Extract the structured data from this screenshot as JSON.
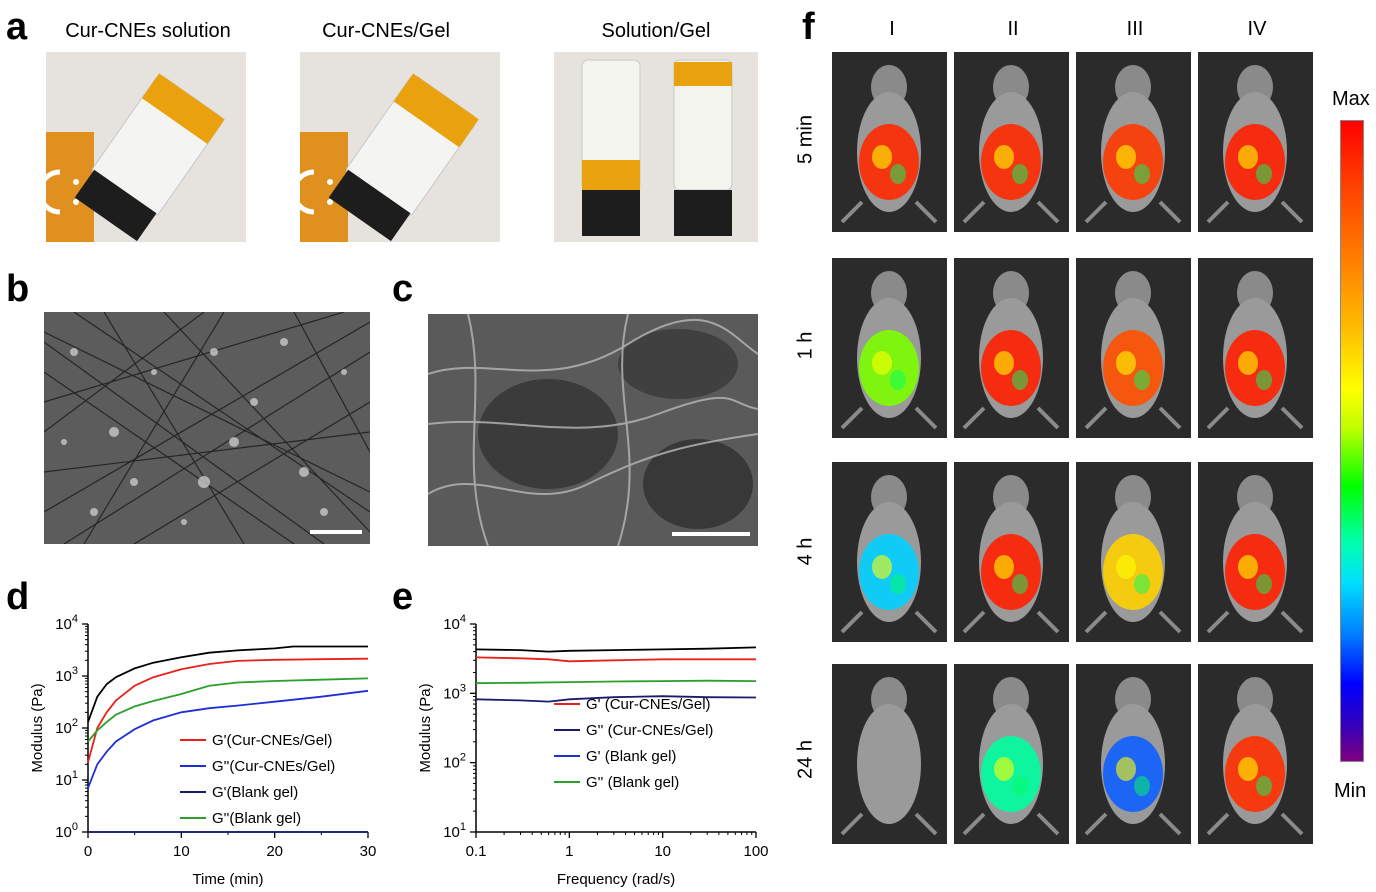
{
  "panels": {
    "a": "a",
    "b": "b",
    "c": "c",
    "d": "d",
    "e": "e",
    "f": "f"
  },
  "panel_a": {
    "captions": [
      "Cur-CNEs solution",
      "Cur-CNEs/Gel",
      "Solution/Gel"
    ]
  },
  "panel_f": {
    "columns": [
      "I",
      "II",
      "III",
      "IV"
    ],
    "rows": [
      "5 min",
      "1 h",
      "4 h",
      "24 h"
    ],
    "scale_max": "Max",
    "scale_min": "Min"
  },
  "colors": {
    "red": "#e8211b",
    "blue": "#1f2fd6",
    "navy": "#1b1b6e",
    "green": "#2aa02a",
    "black": "#000000"
  },
  "chart_data": [
    {
      "type": "line",
      "panel": "d",
      "xlabel": "Time (min)",
      "ylabel": "Modulus (Pa)",
      "xlim": [
        0,
        30
      ],
      "ylim_log10": [
        0,
        4
      ],
      "yscale": "log",
      "xticks": [
        "0",
        "10",
        "20",
        "30"
      ],
      "yticks": [
        "10^0",
        "10^1",
        "10^2",
        "10^3",
        "10^4"
      ],
      "legend_position": "right",
      "series": [
        {
          "name": "Black line (unlabeled)",
          "color": "#000000",
          "x": [
            0,
            1,
            2,
            3,
            5,
            7,
            10,
            13,
            16,
            20,
            22,
            25,
            30
          ],
          "y": [
            130,
            400,
            700,
            950,
            1400,
            1800,
            2300,
            2800,
            3100,
            3400,
            3700,
            3700,
            3700
          ]
        },
        {
          "name": "G'(Cur-CNEs/Gel)",
          "color": "#e8211b",
          "x": [
            0,
            1,
            2,
            3,
            5,
            7,
            10,
            13,
            16,
            20,
            25,
            30
          ],
          "y": [
            22,
            100,
            200,
            340,
            650,
            950,
            1350,
            1700,
            1950,
            2050,
            2100,
            2150
          ]
        },
        {
          "name": "G''(Cur-CNEs/Gel)",
          "color": "#1f2fd6",
          "x": [
            0,
            1,
            2,
            3,
            5,
            7,
            10,
            13,
            16,
            20,
            25,
            30
          ],
          "y": [
            7,
            20,
            35,
            55,
            95,
            140,
            200,
            240,
            270,
            320,
            400,
            520
          ]
        },
        {
          "name": "G'(Blank gel)",
          "color": "#1b1b6e",
          "x": [
            0,
            30
          ],
          "y": [
            1,
            1
          ]
        },
        {
          "name": "G''(Blank gel)",
          "color": "#2aa02a",
          "x": [
            0,
            1,
            2,
            3,
            5,
            7,
            10,
            13,
            16,
            20,
            25,
            30
          ],
          "y": [
            55,
            90,
            130,
            180,
            260,
            330,
            450,
            650,
            750,
            800,
            850,
            900
          ]
        }
      ]
    },
    {
      "type": "line",
      "panel": "e",
      "xlabel": "Frequency (rad/s)",
      "ylabel": "Modulus (Pa)",
      "xscale": "log",
      "xlim_log10": [
        -1,
        2
      ],
      "ylim_log10": [
        1,
        4
      ],
      "yscale": "log",
      "xticks": [
        "0.1",
        "1",
        "10",
        "100"
      ],
      "yticks": [
        "10^1",
        "10^2",
        "10^3",
        "10^4"
      ],
      "legend_position": "right",
      "series": [
        {
          "name": "Black line (unlabeled)",
          "color": "#000000",
          "x": [
            0.1,
            0.3,
            0.6,
            1,
            3,
            10,
            30,
            100
          ],
          "y": [
            4300,
            4200,
            4000,
            4100,
            4200,
            4300,
            4400,
            4600
          ]
        },
        {
          "name": "G' (Cur-CNEs/Gel)",
          "color": "#e8211b",
          "x": [
            0.1,
            0.3,
            0.6,
            1,
            3,
            10,
            30,
            100
          ],
          "y": [
            3300,
            3200,
            3100,
            2900,
            3000,
            3100,
            3100,
            3100
          ]
        },
        {
          "name": "G'' (Cur-CNEs/Gel)",
          "color": "#1b1b6e",
          "x": [
            0.1,
            0.3,
            0.6,
            1,
            3,
            10,
            30,
            100
          ],
          "y": [
            820,
            790,
            760,
            820,
            880,
            910,
            880,
            870
          ]
        },
        {
          "name": "G' (Blank gel)",
          "color": "#1f2fd6",
          "x": [],
          "y": []
        },
        {
          "name": "G'' (Blank gel)",
          "color": "#2aa02a",
          "x": [
            0.1,
            0.3,
            1,
            3,
            10,
            30,
            100
          ],
          "y": [
            1400,
            1420,
            1450,
            1480,
            1500,
            1520,
            1500
          ]
        }
      ]
    }
  ]
}
